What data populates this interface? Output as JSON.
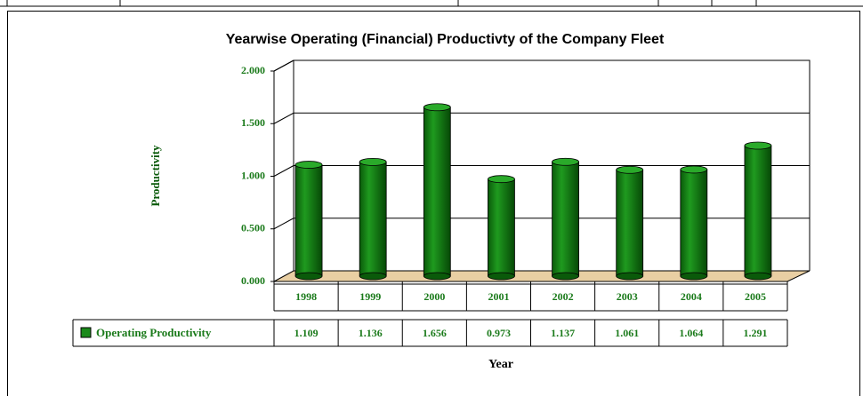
{
  "chart_data": {
    "type": "bar",
    "title": "Yearwise Operating (Financial) Productivty of the Company Fleet",
    "y_label": "Productivity",
    "x_label": "Year",
    "categories": [
      "1998",
      "1999",
      "2000",
      "2001",
      "2002",
      "2003",
      "2004",
      "2005"
    ],
    "series": [
      {
        "name": "Operating Productivity",
        "color": "#1a8a1a",
        "values": [
          1.109,
          1.136,
          1.656,
          0.973,
          1.137,
          1.061,
          1.064,
          1.291
        ]
      }
    ],
    "ylim": [
      0,
      2
    ],
    "yticks": [
      {
        "value": 0,
        "label": "0.000"
      },
      {
        "value": 0.5,
        "label": "0.500"
      },
      {
        "value": 1,
        "label": "1.000"
      },
      {
        "value": 1.5,
        "label": "1.500"
      },
      {
        "value": 2,
        "label": "2.000"
      }
    ],
    "grid": true
  }
}
